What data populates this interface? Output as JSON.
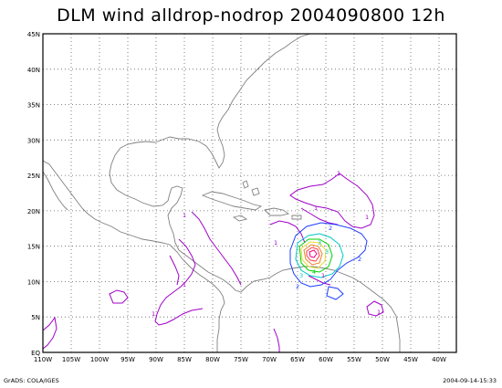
{
  "title": "DLM wind alldrop-nodrop 2004090800 12h",
  "lat_labels": [
    "45N",
    "40N",
    "35N",
    "30N",
    "25N",
    "20N",
    "15N",
    "10N",
    "5N",
    "EQ"
  ],
  "lon_labels": [
    "110W",
    "105W",
    "100W",
    "95W",
    "90W",
    "85W",
    "80W",
    "75W",
    "70W",
    "65W",
    "60W",
    "55W",
    "50W",
    "45W",
    "40W"
  ],
  "footer_left": "GrADS: COLA/IGES",
  "footer_right": "2004-09-14-15:33",
  "contour_labels": [
    "1",
    "1",
    "1",
    "1",
    "1",
    "1",
    "1",
    "1",
    "1",
    "2",
    "2",
    "2",
    "3",
    "3",
    "3",
    "4"
  ],
  "colors": {
    "land": "#808080",
    "grid": "#606060",
    "contour_1": "#a000c8",
    "contour_2": "#1e3cff",
    "contour_3": "#00c8c8",
    "contour_4": "#00d200",
    "contour_5": "#e6dc32",
    "contour_6": "#f08228",
    "contour_7": "#fa3c3c",
    "contour_8": "#f00082"
  }
}
